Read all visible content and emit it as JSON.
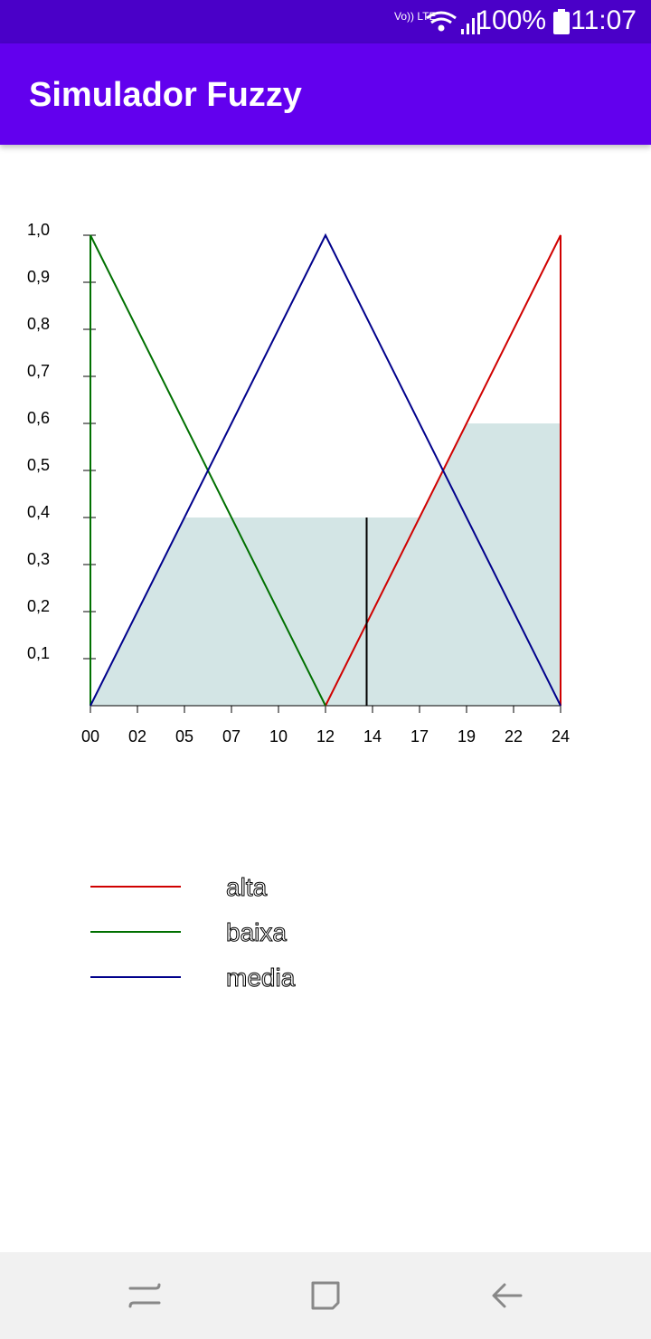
{
  "status_bar": {
    "network": "Vo)) LTE",
    "battery": "100%",
    "time": "11:07"
  },
  "app_bar": {
    "title": "Simulador Fuzzy"
  },
  "chart_data": {
    "type": "line",
    "x_ticks": [
      "00",
      "02",
      "05",
      "07",
      "10",
      "12",
      "14",
      "17",
      "19",
      "22",
      "24"
    ],
    "y_ticks": [
      "0,1",
      "0,2",
      "0,3",
      "0,4",
      "0,5",
      "0,6",
      "0,7",
      "0,8",
      "0,9",
      "1,0"
    ],
    "xlim": [
      0,
      24
    ],
    "ylim": [
      0,
      1
    ],
    "series": [
      {
        "name": "alta",
        "color": "#d00000",
        "points": [
          [
            12,
            0
          ],
          [
            24,
            1
          ],
          [
            24,
            0
          ]
        ]
      },
      {
        "name": "baixa",
        "color": "#007000",
        "points": [
          [
            0,
            0
          ],
          [
            0,
            1
          ],
          [
            12,
            0
          ]
        ]
      },
      {
        "name": "media",
        "color": "#00008b",
        "points": [
          [
            0,
            0
          ],
          [
            12,
            1
          ],
          [
            24,
            0
          ]
        ]
      }
    ],
    "aggregated_area": {
      "color": "#d3e5e5",
      "points": [
        [
          0,
          0
        ],
        [
          4.8,
          0.4
        ],
        [
          16.8,
          0.4
        ],
        [
          19.2,
          0.6
        ],
        [
          24,
          0.6
        ],
        [
          24,
          0
        ]
      ]
    },
    "centroid_x": 14.1,
    "centroid_height": 0.4
  },
  "legend": [
    {
      "label": "alta",
      "color": "#d00000"
    },
    {
      "label": "baixa",
      "color": "#007000"
    },
    {
      "label": "media",
      "color": "#00008b"
    }
  ],
  "nav_bar": {
    "recent_icon": "recent-apps-icon",
    "home_icon": "home-icon",
    "back_icon": "back-icon"
  }
}
